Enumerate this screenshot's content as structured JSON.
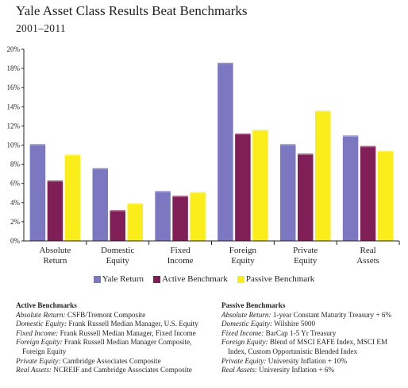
{
  "title": "Yale Asset Class Results Beat Benchmarks",
  "subtitle": "2001–2011",
  "chart_data": {
    "type": "bar",
    "title": "Yale Asset Class Results Beat Benchmarks",
    "subtitle": "2001–2011",
    "categories": [
      [
        "Absolute",
        "Return"
      ],
      [
        "Domestic",
        "Equity"
      ],
      [
        "Fixed",
        "Income"
      ],
      [
        "Foreign",
        "Equity"
      ],
      [
        "Private",
        "Equity"
      ],
      [
        "Real",
        "Assets"
      ]
    ],
    "ylim": [
      0,
      20
    ],
    "yticks": [
      "0%",
      "2%",
      "4%",
      "6%",
      "8%",
      "10%",
      "12%",
      "14%",
      "16%",
      "18%",
      "20%"
    ],
    "series": [
      {
        "name": "Yale Return",
        "color": "#7b78c1",
        "values": [
          10.1,
          7.6,
          5.2,
          18.6,
          10.1,
          11.0
        ]
      },
      {
        "name": "Active Benchmark",
        "color": "#7f1e57",
        "values": [
          6.3,
          3.2,
          4.7,
          11.2,
          9.1,
          9.9
        ]
      },
      {
        "name": "Passive Benchmark",
        "color": "#faed1a",
        "values": [
          9.0,
          3.9,
          5.1,
          11.6,
          13.6,
          9.4
        ]
      }
    ],
    "grid": false,
    "legend_position": "bottom"
  },
  "notes": {
    "active": {
      "heading": "Active Benchmarks",
      "rows": [
        {
          "label": "Absolute Return:",
          "text": " CSFB/Tremont Composite"
        },
        {
          "label": "Domestic Equity:",
          "text": " Frank Russell Median Manager, U.S. Equity"
        },
        {
          "label": "Fixed Income:",
          "text": " Frank Russell Median Manager, Fixed Income"
        },
        {
          "label": "Foreign Equity:",
          "text": " Frank Russell Median Manager Composite,"
        },
        {
          "label": "",
          "text": "Foreign Equity"
        },
        {
          "label": "Private Equity:",
          "text": " Cambridge Associates Composite"
        },
        {
          "label": "Real Assets:",
          "text": " NCREIF and Cambridge Associates Composite"
        }
      ]
    },
    "passive": {
      "heading": "Passive Benchmarks",
      "rows": [
        {
          "label": "Absolute Return:",
          "text": " 1-year Constant Maturity Treasury + 6%"
        },
        {
          "label": "Domestic Equity:",
          "text": " Wilshire 5000"
        },
        {
          "label": "Fixed Income:",
          "text": " BarCap 1-5 Yr Treasury"
        },
        {
          "label": "Foreign Equity:",
          "text": " Blend of MSCI EAFE Index, MSCI EM"
        },
        {
          "label": "",
          "text": "Index, Custom Opportunistic Blended Index"
        },
        {
          "label": "Private Equity:",
          "text": " University Inflation + 10%"
        },
        {
          "label": "Real Assets:",
          "text": " University Inflation + 6%"
        }
      ]
    }
  }
}
